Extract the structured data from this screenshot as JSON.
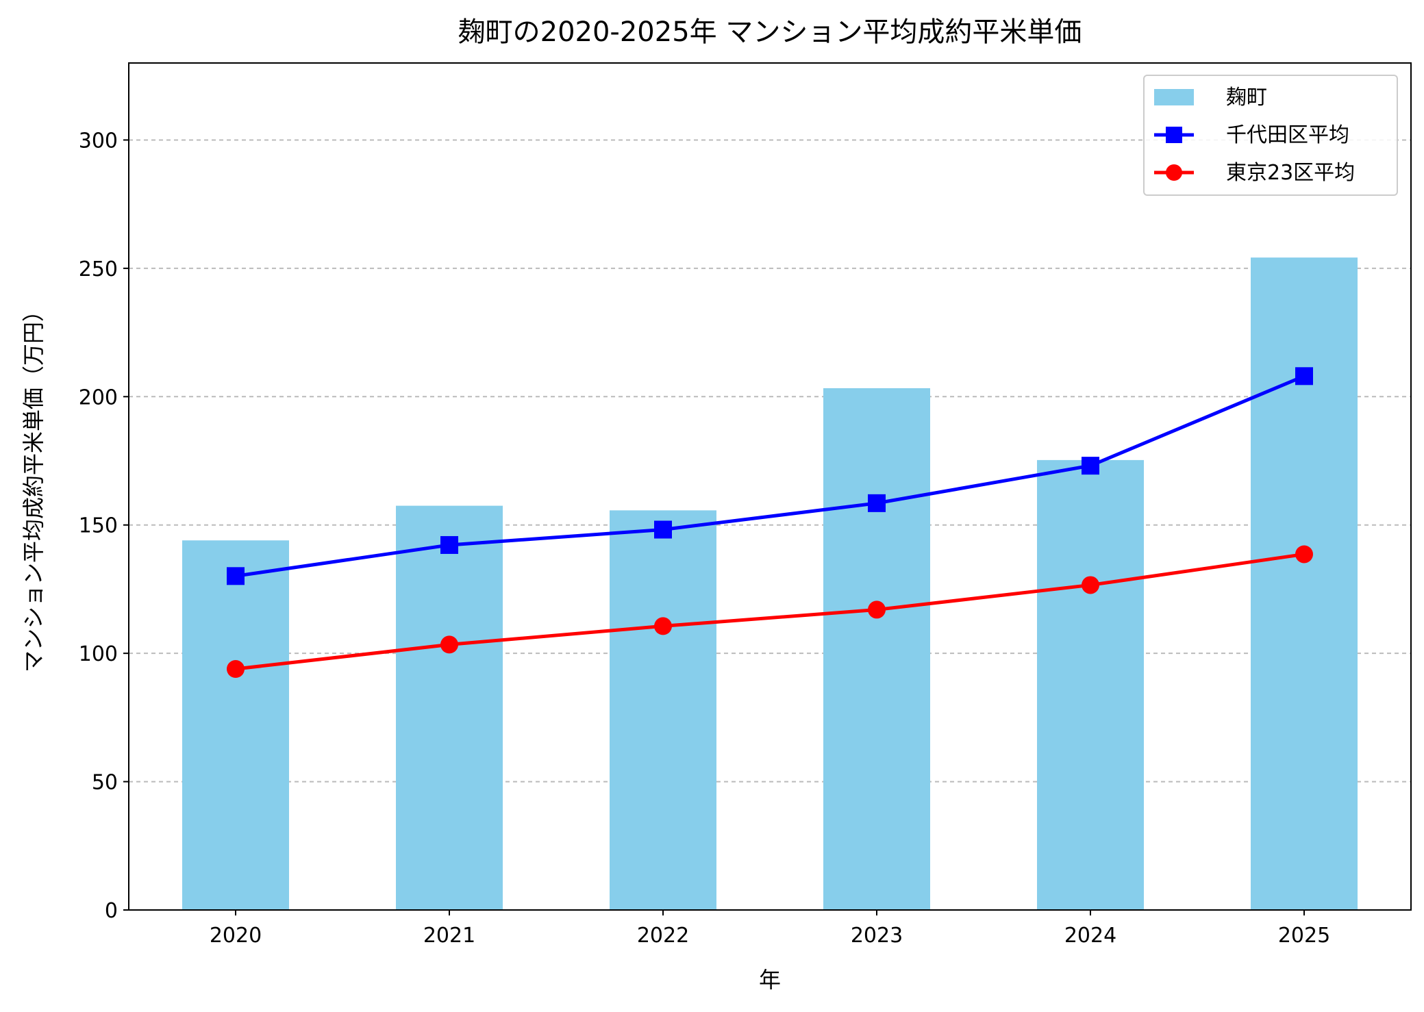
{
  "chart_data": {
    "type": "bar",
    "title": "麹町の2020-2025年 マンション平均成約平米単価",
    "xlabel": "年",
    "ylabel": "マンション平均成約平米単価（万円）",
    "categories": [
      "2020",
      "2021",
      "2022",
      "2023",
      "2024",
      "2025"
    ],
    "ylim": [
      0,
      330
    ],
    "yticks": [
      0,
      50,
      100,
      150,
      200,
      250,
      300
    ],
    "grid": "y-dashed",
    "legend_position": "top-right",
    "series": [
      {
        "name": "麹町",
        "type": "bar",
        "color": "#87CEEB",
        "values": [
          144.0,
          157.5,
          155.7,
          203.3,
          175.3,
          254.2
        ]
      },
      {
        "name": "千代田区平均",
        "type": "line",
        "marker": "square",
        "color": "#0000FF",
        "values": [
          130.1,
          142.2,
          148.2,
          158.5,
          173.1,
          208.0
        ]
      },
      {
        "name": "東京23区平均",
        "type": "line",
        "marker": "circle",
        "color": "#FF0000",
        "values": [
          93.9,
          103.4,
          110.6,
          117.0,
          126.6,
          138.6
        ]
      }
    ]
  }
}
